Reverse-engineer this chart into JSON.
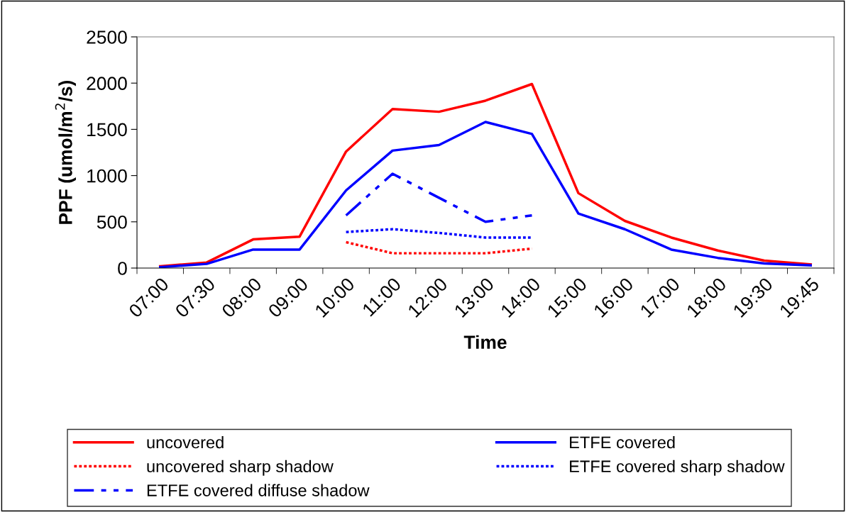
{
  "chart_data": {
    "type": "line",
    "xlabel": "Time",
    "ylabel": "PPF (umol/m$^{2}$/s)",
    "categories": [
      "07:00",
      "07:30",
      "08:00",
      "09:00",
      "10:00",
      "11:00",
      "12:00",
      "13:00",
      "14:00",
      "15:00",
      "16:00",
      "17:00",
      "18:00",
      "19:30",
      "19:45"
    ],
    "ylim": [
      0,
      2500
    ],
    "yticks": [
      0,
      500,
      1000,
      1500,
      2000,
      2500
    ],
    "grid": false,
    "legend": "bottom",
    "marker": "none",
    "series": [
      {
        "name": "uncovered",
        "color": "#ff0000",
        "line_style": "solid",
        "values": [
          20,
          60,
          310,
          340,
          1260,
          1720,
          1690,
          1810,
          1990,
          810,
          510,
          330,
          190,
          80,
          40
        ]
      },
      {
        "name": "ETFE covered",
        "color": "#0000ff",
        "line_style": "solid",
        "values": [
          10,
          45,
          200,
          200,
          840,
          1270,
          1330,
          1580,
          1450,
          590,
          420,
          200,
          110,
          50,
          30
        ]
      },
      {
        "name": "uncovered sharp shadow",
        "color": "#ff0000",
        "line_style": "dotted",
        "values": [
          null,
          null,
          null,
          null,
          280,
          160,
          160,
          160,
          210,
          null,
          null,
          null,
          null,
          null,
          null
        ]
      },
      {
        "name": "ETFE covered sharp shadow",
        "color": "#0000ff",
        "line_style": "dotted",
        "values": [
          null,
          null,
          null,
          null,
          390,
          420,
          380,
          330,
          330,
          null,
          null,
          null,
          null,
          null,
          null
        ]
      },
      {
        "name": "ETFE covered diffuse shadow",
        "color": "#0000ff",
        "line_style": "dashdot",
        "values": [
          null,
          null,
          null,
          null,
          570,
          1020,
          760,
          500,
          570,
          null,
          null,
          null,
          null,
          null,
          null
        ]
      }
    ]
  }
}
